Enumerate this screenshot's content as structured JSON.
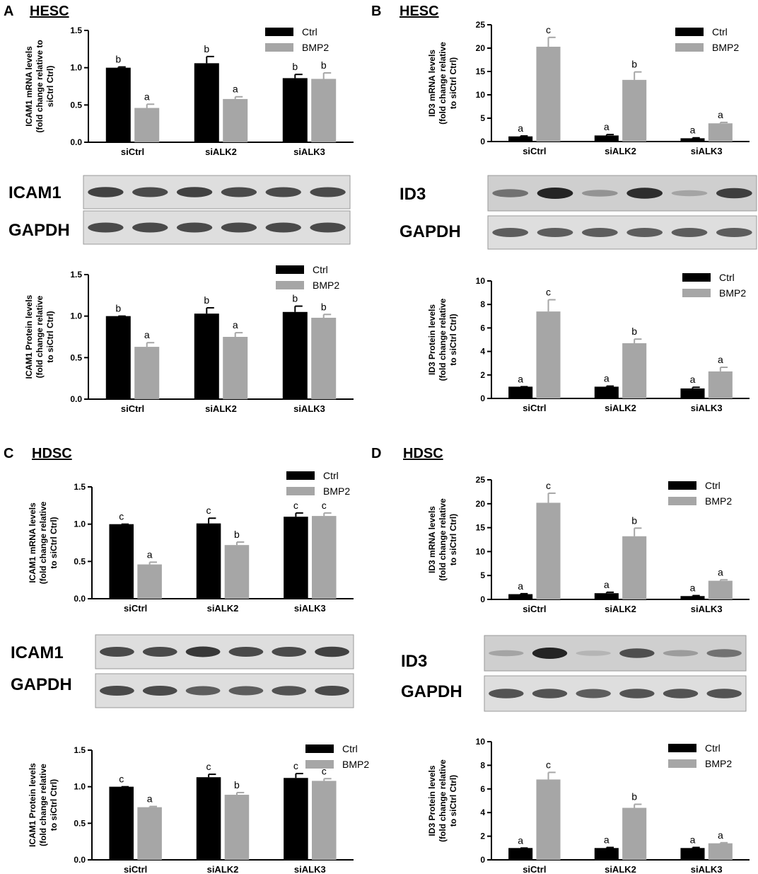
{
  "panels": [
    {
      "letter": "A",
      "cell_line": "HESC",
      "blots": [
        "ICAM1",
        "GAPDH"
      ]
    },
    {
      "letter": "B",
      "cell_line": "HESC",
      "blots": [
        "ID3",
        "GAPDH"
      ]
    },
    {
      "letter": "C",
      "cell_line": "HDSC",
      "blots": [
        "ICAM1",
        "GAPDH"
      ]
    },
    {
      "letter": "D",
      "cell_line": "HDSC",
      "blots": [
        "ID3",
        "GAPDH"
      ]
    }
  ],
  "chart_data": [
    {
      "type": "bar",
      "ylabel": [
        "ICAM1 mRNA levels",
        "(fold change relative to",
        "siCtrl Ctrl)"
      ],
      "categories": [
        "siCtrl",
        "siALK2",
        "siALK3"
      ],
      "series": [
        {
          "name": "Ctrl",
          "color": "#000000",
          "values": [
            1.0,
            1.06,
            0.86
          ],
          "errors": [
            0.01,
            0.09,
            0.05
          ],
          "letters": [
            "b",
            "b",
            "b"
          ]
        },
        {
          "name": "BMP2",
          "color": "#a6a6a6",
          "values": [
            0.46,
            0.58,
            0.85
          ],
          "errors": [
            0.05,
            0.03,
            0.08
          ],
          "letters": [
            "a",
            "a",
            "b"
          ]
        }
      ],
      "ylim": [
        0,
        1.5
      ],
      "yticks": [
        {
          "value": 0,
          "label": "0.0"
        },
        0.5,
        {
          "value": 1,
          "label": "1.0"
        },
        1.5
      ]
    },
    {
      "type": "bar",
      "ylabel": [
        "ID3 mRNA levels",
        "(fold change relative",
        "to siCtrl Ctrl)"
      ],
      "categories": [
        "siCtrl",
        "siALK2",
        "siALK3"
      ],
      "series": [
        {
          "name": "Ctrl",
          "color": "#000000",
          "values": [
            1.1,
            1.3,
            0.7
          ],
          "errors": [
            0.1,
            0.2,
            0.1
          ],
          "letters": [
            "a",
            "a",
            "a"
          ]
        },
        {
          "name": "BMP2",
          "color": "#a6a6a6",
          "values": [
            20.3,
            13.2,
            3.9
          ],
          "errors": [
            2.0,
            1.7,
            0.2
          ],
          "letters": [
            "c",
            "b",
            "a"
          ]
        }
      ],
      "ylim": [
        0,
        25
      ],
      "yticks": [
        0,
        5,
        10,
        15,
        20,
        25
      ]
    },
    {
      "type": "bar",
      "ylabel": [
        "ICAM1 Protein levels",
        "(fold change relative",
        "to siCtrl Ctrl)"
      ],
      "categories": [
        "siCtrl",
        "siALK2",
        "siALK3"
      ],
      "series": [
        {
          "name": "Ctrl",
          "color": "#000000",
          "values": [
            1.0,
            1.03,
            1.05
          ],
          "errors": [
            0.0,
            0.07,
            0.07
          ],
          "letters": [
            "b",
            "b",
            "b"
          ]
        },
        {
          "name": "BMP2",
          "color": "#a6a6a6",
          "values": [
            0.63,
            0.75,
            0.98
          ],
          "errors": [
            0.05,
            0.05,
            0.04
          ],
          "letters": [
            "a",
            "a",
            "b"
          ]
        }
      ],
      "ylim": [
        0,
        1.5
      ],
      "yticks": [
        {
          "value": 0,
          "label": "0.0"
        },
        0.5,
        {
          "value": 1,
          "label": "1.0"
        },
        1.5
      ]
    },
    {
      "type": "bar",
      "ylabel": [
        "ID3 Protein levels",
        "(fold change relative",
        "to siCtrl Ctrl)"
      ],
      "categories": [
        "siCtrl",
        "siALK2",
        "siALK3"
      ],
      "series": [
        {
          "name": "Ctrl",
          "color": "#000000",
          "values": [
            1.0,
            1.0,
            0.85
          ],
          "errors": [
            0.0,
            0.05,
            0.1
          ],
          "letters": [
            "a",
            "a",
            "a"
          ]
        },
        {
          "name": "BMP2",
          "color": "#a6a6a6",
          "values": [
            7.4,
            4.7,
            2.3
          ],
          "errors": [
            1.0,
            0.35,
            0.35
          ],
          "letters": [
            "c",
            "b",
            "a"
          ]
        }
      ],
      "ylim": [
        0,
        10
      ],
      "yticks": [
        0,
        2,
        4,
        6,
        8,
        10
      ]
    },
    {
      "type": "bar",
      "ylabel": [
        "ICAM1 mRNA levels",
        "(fold change relative",
        "to siCtrl Ctrl)"
      ],
      "categories": [
        "siCtrl",
        "siALK2",
        "siALK3"
      ],
      "series": [
        {
          "name": "Ctrl",
          "color": "#000000",
          "values": [
            1.0,
            1.01,
            1.1
          ],
          "errors": [
            0.0,
            0.07,
            0.05
          ],
          "letters": [
            "c",
            "c",
            "c"
          ]
        },
        {
          "name": "BMP2",
          "color": "#a6a6a6",
          "values": [
            0.46,
            0.72,
            1.11
          ],
          "errors": [
            0.03,
            0.04,
            0.04
          ],
          "letters": [
            "a",
            "b",
            "c"
          ]
        }
      ],
      "ylim": [
        0,
        1.5
      ],
      "yticks": [
        {
          "value": 0,
          "label": "0.0"
        },
        0.5,
        {
          "value": 1,
          "label": "1.0"
        },
        1.5
      ]
    },
    {
      "type": "bar",
      "ylabel": [
        "ID3 mRNA levels",
        "(fold change relative",
        "to siCtrl Ctrl)"
      ],
      "categories": [
        "siCtrl",
        "siALK2",
        "siALK3"
      ],
      "series": [
        {
          "name": "Ctrl",
          "color": "#000000",
          "values": [
            1.1,
            1.3,
            0.7
          ],
          "errors": [
            0.1,
            0.2,
            0.1
          ],
          "letters": [
            "a",
            "a",
            "a"
          ]
        },
        {
          "name": "BMP2",
          "color": "#a6a6a6",
          "values": [
            20.2,
            13.2,
            3.9
          ],
          "errors": [
            2.0,
            1.7,
            0.2
          ],
          "letters": [
            "c",
            "b",
            "a"
          ]
        }
      ],
      "ylim": [
        0,
        25
      ],
      "yticks": [
        0,
        5,
        10,
        15,
        20,
        25
      ]
    },
    {
      "type": "bar",
      "ylabel": [
        "ICAM1 Protein levels",
        "(fold change relative",
        "to siCtrl Ctrl)"
      ],
      "categories": [
        "siCtrl",
        "siALK2",
        "siALK3"
      ],
      "series": [
        {
          "name": "Ctrl",
          "color": "#000000",
          "values": [
            1.0,
            1.13,
            1.12
          ],
          "errors": [
            0.0,
            0.04,
            0.06
          ],
          "letters": [
            "c",
            "c",
            "c"
          ]
        },
        {
          "name": "BMP2",
          "color": "#a6a6a6",
          "values": [
            0.72,
            0.89,
            1.08
          ],
          "errors": [
            0.01,
            0.03,
            0.03
          ],
          "letters": [
            "a",
            "b",
            "c"
          ]
        }
      ],
      "ylim": [
        0,
        1.5
      ],
      "yticks": [
        {
          "value": 0,
          "label": "0.0"
        },
        0.5,
        {
          "value": 1,
          "label": "1.0"
        },
        1.5
      ]
    },
    {
      "type": "bar",
      "ylabel": [
        "ID3 Protein levels",
        "(fold change relative",
        "to siCtrl Ctrl)"
      ],
      "categories": [
        "siCtrl",
        "siALK2",
        "siALK3"
      ],
      "series": [
        {
          "name": "Ctrl",
          "color": "#000000",
          "values": [
            1.0,
            1.0,
            1.0
          ],
          "errors": [
            0.0,
            0.05,
            0.05
          ],
          "letters": [
            "a",
            "a",
            "a"
          ]
        },
        {
          "name": "BMP2",
          "color": "#a6a6a6",
          "values": [
            6.8,
            4.4,
            1.4
          ],
          "errors": [
            0.6,
            0.3,
            0.05
          ],
          "letters": [
            "c",
            "b",
            "a"
          ]
        }
      ],
      "ylim": [
        0,
        10
      ],
      "yticks": [
        0,
        2,
        4,
        6,
        8,
        10
      ]
    }
  ]
}
